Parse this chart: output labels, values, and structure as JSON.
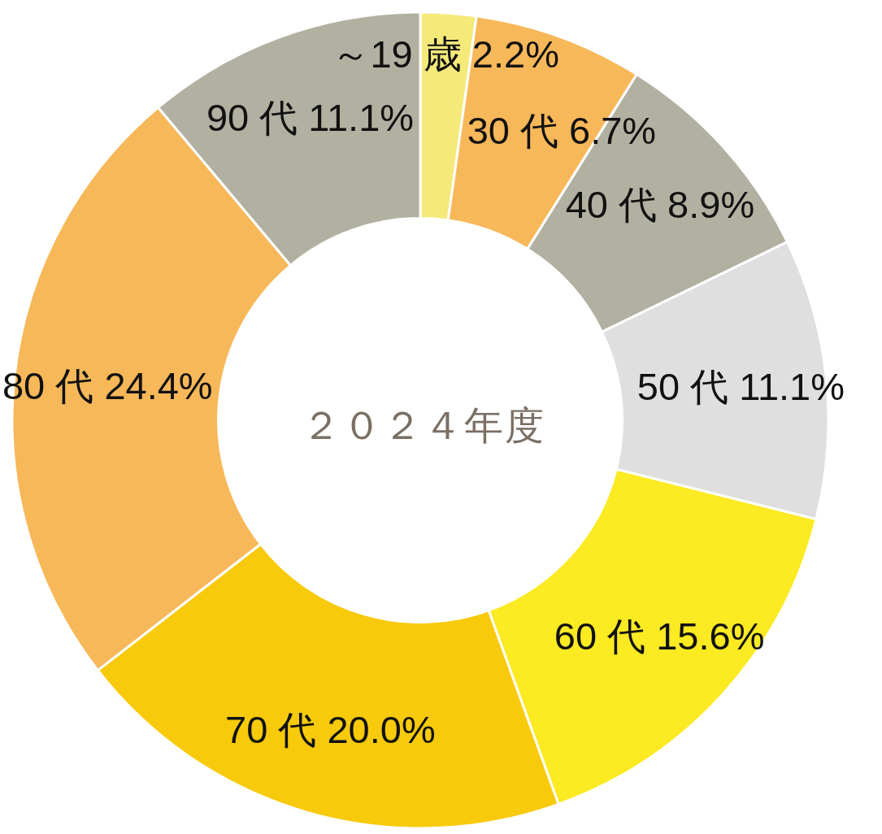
{
  "chart_data": {
    "type": "donut",
    "title": "２０２４年度",
    "categories": [
      "～19 歳",
      "30 代",
      "40 代",
      "50 代",
      "60 代",
      "70 代",
      "80 代",
      "90 代"
    ],
    "values": [
      2.2,
      6.7,
      8.9,
      11.1,
      15.6,
      20.0,
      24.4,
      11.1
    ],
    "value_labels": [
      "2.2%",
      "6.7%",
      "8.9%",
      "11.1%",
      "15.6%",
      "20.0%",
      "24.4%",
      "11.1%"
    ],
    "colors": [
      "#f5e97a",
      "#f7b85a",
      "#b2b1a1",
      "#dfdfdf",
      "#fcea22",
      "#f8ca0c",
      "#f7b85a",
      "#b2b1a1"
    ]
  }
}
